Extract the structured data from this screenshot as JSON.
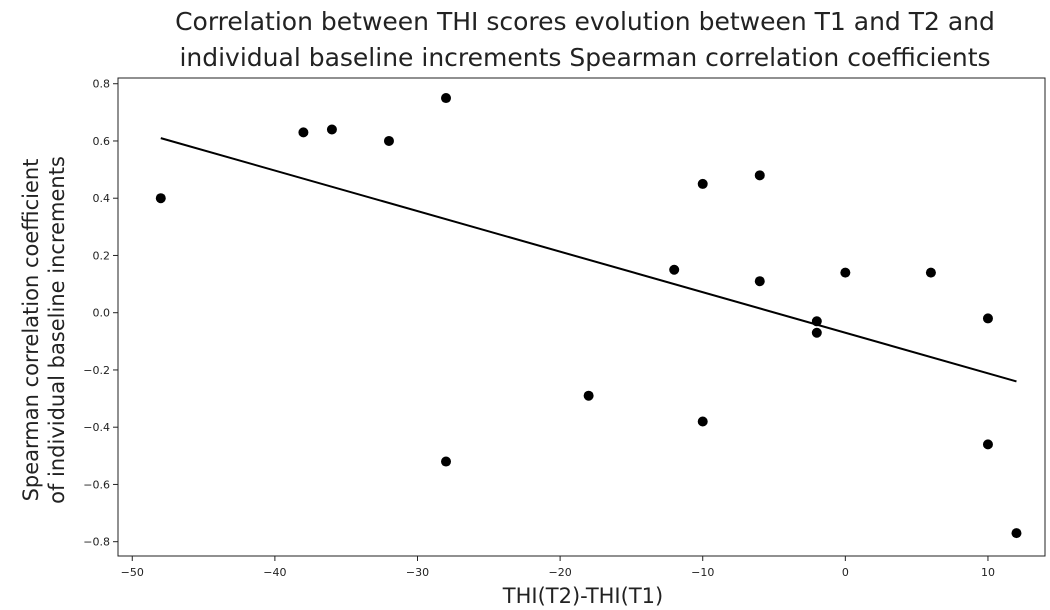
{
  "chart_data": {
    "type": "scatter",
    "title": [
      "Correlation between THI scores evolution between T1 and T2 and",
      "individual baseline increments Spearman correlation coefficients"
    ],
    "xlabel": "THI(T2)-THI(T1)",
    "ylabel": [
      "Spearman correlation coefficient",
      "of individual baseline increments"
    ],
    "xlim": [
      -51,
      14
    ],
    "ylim": [
      -0.85,
      0.82
    ],
    "xticks": [
      -50,
      -40,
      -30,
      -20,
      -10,
      0,
      10
    ],
    "xtick_labels": [
      "−50",
      "−40",
      "−30",
      "−20",
      "−10",
      "0",
      "10"
    ],
    "yticks": [
      0.8,
      0.6,
      0.4,
      0.2,
      0.0,
      -0.2,
      -0.4,
      -0.6,
      -0.8
    ],
    "ytick_labels": [
      "0.8",
      "0.6",
      "0.4",
      "0.2",
      "0.0",
      "−0.2",
      "−0.4",
      "−0.6",
      "−0.8"
    ],
    "grid": false,
    "points": [
      {
        "x": -48,
        "y": 0.4
      },
      {
        "x": -38,
        "y": 0.63
      },
      {
        "x": -36,
        "y": 0.64
      },
      {
        "x": -32,
        "y": 0.6
      },
      {
        "x": -28,
        "y": 0.75
      },
      {
        "x": -28,
        "y": -0.52
      },
      {
        "x": -18,
        "y": -0.29
      },
      {
        "x": -12,
        "y": 0.15
      },
      {
        "x": -10,
        "y": 0.45
      },
      {
        "x": -10,
        "y": -0.38
      },
      {
        "x": -6,
        "y": 0.48
      },
      {
        "x": -6,
        "y": 0.11
      },
      {
        "x": -2,
        "y": -0.03
      },
      {
        "x": -2,
        "y": -0.07
      },
      {
        "x": 0,
        "y": 0.14
      },
      {
        "x": 6,
        "y": 0.14
      },
      {
        "x": 10,
        "y": -0.02
      },
      {
        "x": 10,
        "y": -0.46
      },
      {
        "x": 12,
        "y": -0.77
      }
    ],
    "fit_line": {
      "x": [
        -48,
        12
      ],
      "y": [
        0.61,
        -0.24
      ]
    },
    "colors": {
      "points": "#000000",
      "line": "#000000"
    }
  }
}
